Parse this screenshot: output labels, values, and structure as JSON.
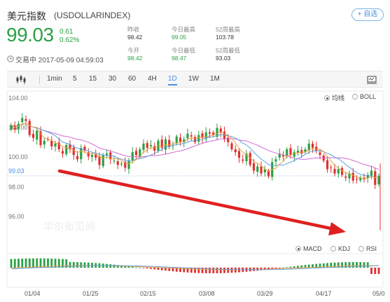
{
  "header": {
    "title": "美元指数",
    "symbol": "(USDOLLARINDEX)",
    "add_label": "+ 自选",
    "price": "99.03",
    "change": "0.61",
    "change_pct": "0.62%",
    "status": "交易中 2017-05-09 04:59:03",
    "stats": [
      {
        "label": "昨收",
        "value": "98.42"
      },
      {
        "label": "今日最高",
        "value": "99.05"
      },
      {
        "label": "52周最高",
        "value": "103.78"
      },
      {
        "label": "今开",
        "value": "98.42"
      },
      {
        "label": "今日最低",
        "value": "98.47"
      },
      {
        "label": "52周最低",
        "value": "93.03"
      }
    ]
  },
  "toolbar": {
    "periods": [
      "1min",
      "5",
      "15",
      "30",
      "60",
      "4H",
      "1D",
      "1W",
      "1M"
    ],
    "active_period": "1D"
  },
  "overlay_options": [
    {
      "label": "均线",
      "selected": true
    },
    {
      "label": "BOLL",
      "selected": false
    }
  ],
  "indicator_options": [
    {
      "label": "MACD",
      "selected": true
    },
    {
      "label": "KDJ",
      "selected": false
    },
    {
      "label": "RSI",
      "selected": false
    }
  ],
  "chart": {
    "y_ticks": [
      "104.00",
      "102.00",
      "100.00",
      "98.00",
      "96.00"
    ],
    "current_price_label": "99.03",
    "x_ticks": [
      "01/04",
      "01/25",
      "02/15",
      "03/08",
      "03/29",
      "04/17",
      "05/0"
    ],
    "watermark": "华尔街见闻",
    "colors": {
      "up": "#2aa144",
      "down": "#e0312e",
      "ma_pink": "#d36ad3",
      "ma_blue": "#5aa0e6",
      "ma_orange": "#f0a040",
      "arrow": "#e02020"
    }
  },
  "chart_data": {
    "type": "candlestick",
    "ylim": [
      94.5,
      104.5
    ],
    "y_ticks": [
      104,
      102,
      100,
      98,
      96
    ],
    "x_ticks": [
      "01/04",
      "01/25",
      "02/15",
      "03/08",
      "03/29",
      "04/17",
      "05/0"
    ],
    "closes": [
      102.6,
      102.3,
      102.7,
      103.1,
      102.9,
      101.9,
      101.7,
      102.2,
      101.2,
      101.5,
      101.6,
      101.1,
      101.3,
      100.9,
      100.6,
      101.2,
      100.9,
      100.5,
      100.2,
      101.0,
      100.8,
      100.4,
      100.5,
      100.3,
      99.8,
      100.5,
      100.6,
      100.2,
      100.1,
      99.8,
      99.9,
      99.6,
      100.1,
      100.7,
      100.5,
      100.9,
      101.3,
      101.0,
      101.2,
      100.8,
      101.5,
      101.0,
      101.6,
      101.1,
      101.2,
      101.8,
      101.4,
      101.6,
      102.0,
      101.8,
      101.4,
      101.9,
      101.7,
      102.1,
      102.0,
      101.9,
      102.4,
      102.1,
      101.6,
      101.4,
      100.9,
      100.7,
      100.3,
      100.1,
      100.6,
      99.8,
      99.4,
      99.7,
      99.2,
      99.5,
      99.0,
      100.0,
      100.2,
      100.6,
      100.4,
      100.9,
      100.5,
      100.7,
      100.8,
      100.6,
      100.9,
      101.3,
      101.0,
      100.8,
      100.5,
      100.1,
      99.5,
      99.6,
      99.2,
      99.5,
      99.1,
      98.9,
      99.2,
      98.7,
      98.8,
      98.9,
      98.8,
      99.1,
      99.4,
      98.4,
      99.03
    ],
    "macd": {
      "histogram_sign": "positive then negative"
    }
  }
}
